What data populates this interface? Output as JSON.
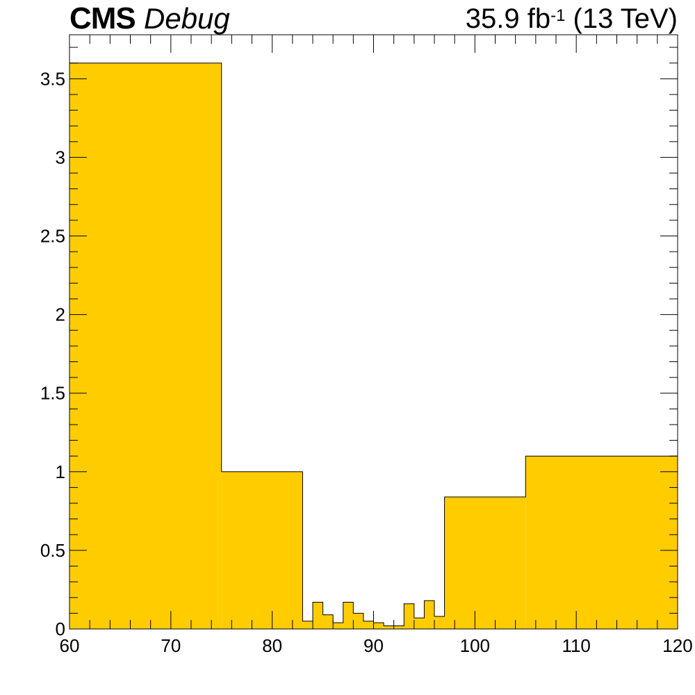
{
  "header": {
    "experiment": "CMS",
    "extra": "Debug",
    "lumi_value": "35.9 fb",
    "lumi_exp": "-1",
    "lumi_energy": " (13 TeV)"
  },
  "colors": {
    "fill": "#ffcc00",
    "line": "#000000",
    "background": "#ffffff"
  },
  "chart_data": {
    "type": "bar",
    "title": "",
    "xlabel": "",
    "ylabel": "",
    "xlim": [
      60,
      120
    ],
    "ylim": [
      0,
      3.78
    ],
    "grid": false,
    "bin_edges": [
      60,
      75,
      83,
      84,
      85,
      86,
      87,
      88,
      89,
      90,
      91,
      92,
      93,
      94,
      95,
      96,
      97,
      105,
      120
    ],
    "values": [
      3.6,
      1.0,
      0.05,
      0.17,
      0.09,
      0.04,
      0.17,
      0.1,
      0.05,
      0.04,
      0.02,
      0.02,
      0.16,
      0.07,
      0.18,
      0.08,
      0.84,
      1.1
    ],
    "x_ticks": [
      "60",
      "70",
      "80",
      "90",
      "100",
      "110",
      "120"
    ],
    "y_ticks": [
      "0",
      "0.5",
      "1",
      "1.5",
      "2",
      "2.5",
      "3",
      "3.5"
    ]
  }
}
